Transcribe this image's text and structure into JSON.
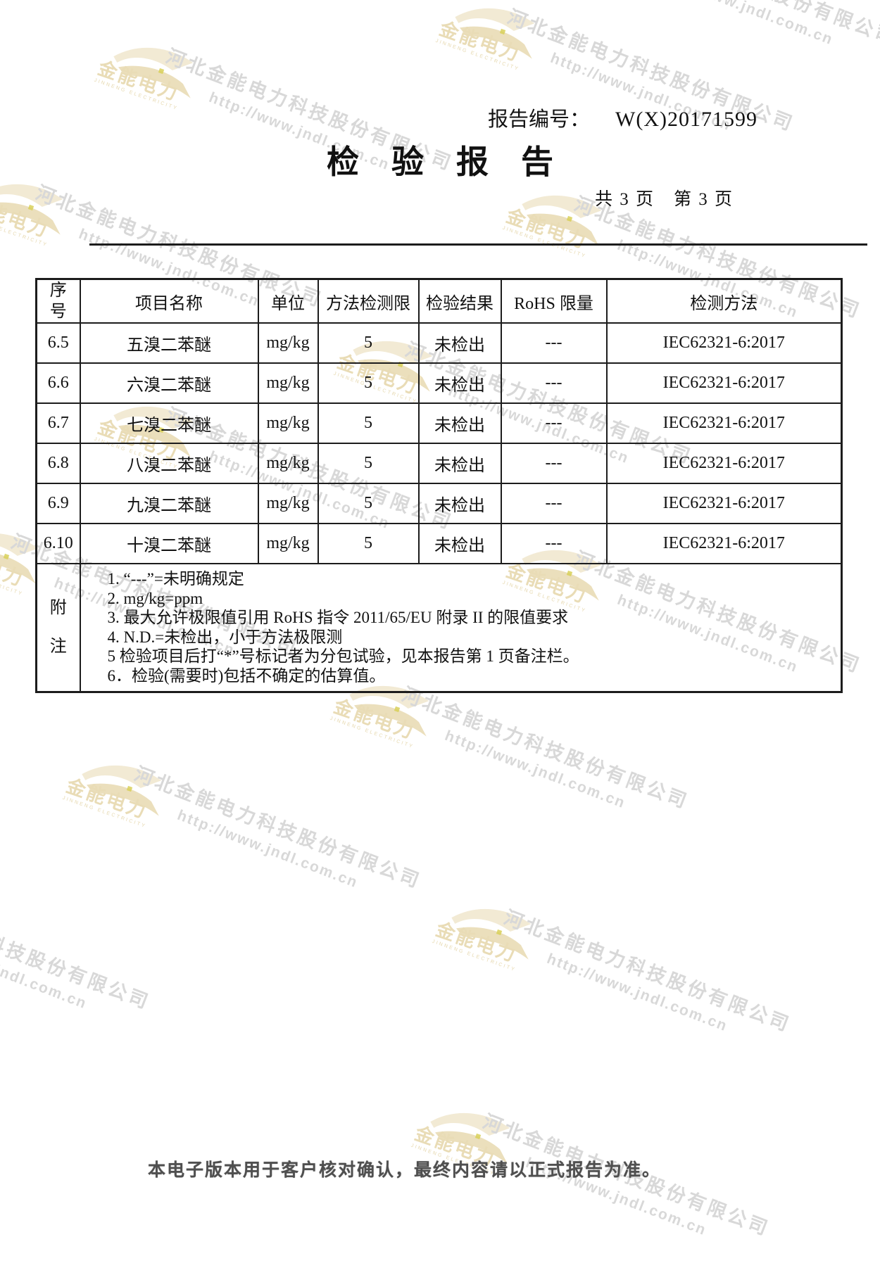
{
  "header": {
    "report_no_label": "报告编号：",
    "report_no_value": "W(X)20171599",
    "title": "检验报告",
    "page_info": "共 3 页　第 3 页"
  },
  "table": {
    "columns": {
      "no": "序号",
      "item": "项目名称",
      "unit": "单位",
      "limit": "方法检测限",
      "result": "检验结果",
      "rohs": "RoHS 限量",
      "method": "检测方法"
    },
    "rows": [
      {
        "no": "6.5",
        "item": "五溴二苯醚",
        "unit": "mg/kg",
        "limit": "5",
        "result": "未检出",
        "rohs": "---",
        "method": "IEC62321-6:2017"
      },
      {
        "no": "6.6",
        "item": "六溴二苯醚",
        "unit": "mg/kg",
        "limit": "5",
        "result": "未检出",
        "rohs": "---",
        "method": "IEC62321-6:2017"
      },
      {
        "no": "6.7",
        "item": "七溴二苯醚",
        "unit": "mg/kg",
        "limit": "5",
        "result": "未检出",
        "rohs": "---",
        "method": "IEC62321-6:2017"
      },
      {
        "no": "6.8",
        "item": "八溴二苯醚",
        "unit": "mg/kg",
        "limit": "5",
        "result": "未检出",
        "rohs": "---",
        "method": "IEC62321-6:2017"
      },
      {
        "no": "6.9",
        "item": "九溴二苯醚",
        "unit": "mg/kg",
        "limit": "5",
        "result": "未检出",
        "rohs": "---",
        "method": "IEC62321-6:2017"
      },
      {
        "no": "6.10",
        "item": "十溴二苯醚",
        "unit": "mg/kg",
        "limit": "5",
        "result": "未检出",
        "rohs": "---",
        "method": "IEC62321-6:2017"
      }
    ],
    "notes_label": "附注",
    "notes": [
      "1.  “---”=未明确规定",
      "2.  mg/kg=ppm",
      "3.  最大允许极限值引用 RoHS 指令 2011/65/EU 附录 II 的限值要求",
      "4.  N.D.=未检出，小于方法极限测",
      "5   检验项目后打“*”号标记者为分包试验，见本报告第 1 页备注栏。",
      "6．检验(需要时)包括不确定的估算值。"
    ]
  },
  "footer": {
    "disclaimer": "本电子版本用于客户核对确认，最终内容请以正式报告为准。"
  },
  "watermark": {
    "company": "河北金能电力科技股份有限公司",
    "url": "http://www.jndl.com.cn",
    "logo_text": "金能电力",
    "logo_subtext": "JINNENG ELECTRICITY",
    "colors": {
      "watermark_text": "#d8d8d8",
      "logo_tan": "#eee3c4",
      "border_black": "#1c1c1c"
    }
  }
}
